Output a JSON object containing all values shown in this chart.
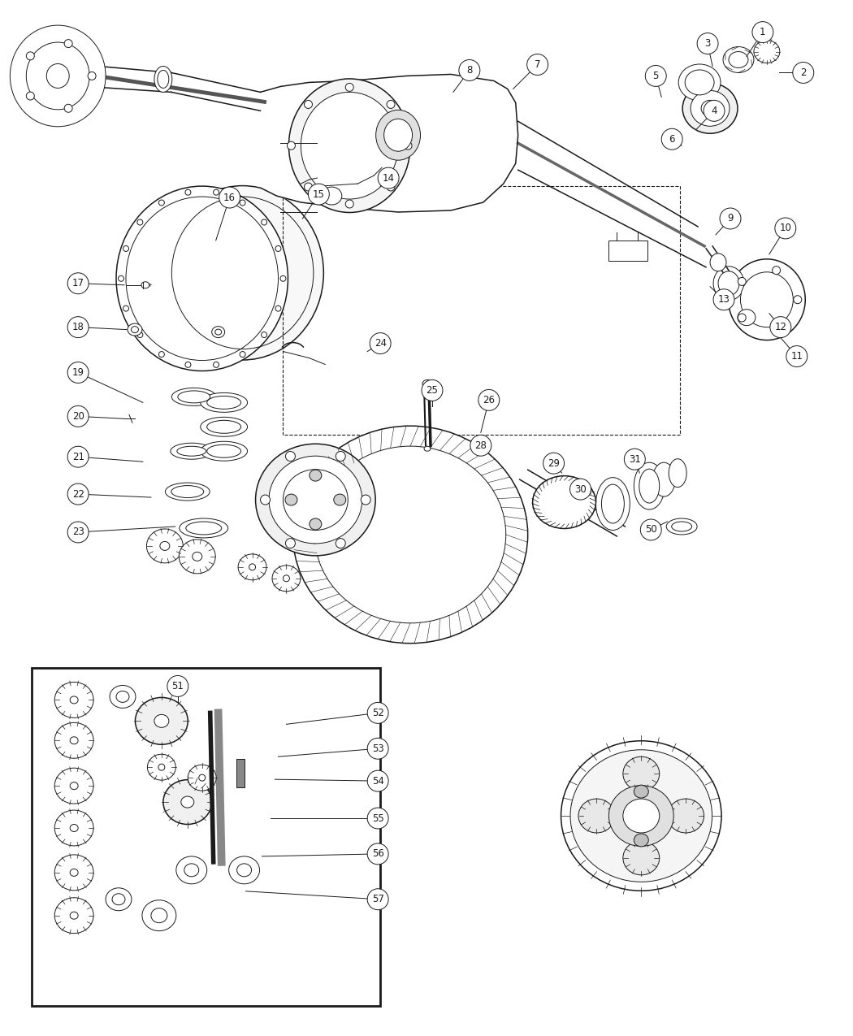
{
  "background_color": "#ffffff",
  "line_color": "#1a1a1a",
  "fig_width": 10.5,
  "fig_height": 12.75,
  "dpi": 100,
  "lw_main": 1.1,
  "lw_thin": 0.7,
  "lw_thick": 2.0,
  "label_r": 13,
  "label_fontsize": 8.5,
  "labels": [
    [
      "1",
      940,
      38,
      920,
      68
    ],
    [
      "2",
      990,
      88,
      960,
      88
    ],
    [
      "3",
      872,
      52,
      878,
      80
    ],
    [
      "4",
      880,
      135,
      858,
      158
    ],
    [
      "5",
      808,
      92,
      815,
      118
    ],
    [
      "6",
      828,
      170,
      840,
      178
    ],
    [
      "7",
      662,
      78,
      632,
      108
    ],
    [
      "8",
      578,
      85,
      558,
      112
    ],
    [
      "9",
      900,
      268,
      882,
      288
    ],
    [
      "10",
      968,
      280,
      948,
      312
    ],
    [
      "11",
      982,
      438,
      962,
      415
    ],
    [
      "12",
      962,
      402,
      948,
      385
    ],
    [
      "13",
      892,
      368,
      875,
      352
    ],
    [
      "14",
      478,
      218,
      468,
      228
    ],
    [
      "15",
      392,
      238,
      372,
      268
    ],
    [
      "16",
      282,
      242,
      265,
      295
    ],
    [
      "17",
      95,
      348,
      152,
      350
    ],
    [
      "18",
      95,
      402,
      155,
      405
    ],
    [
      "19",
      95,
      458,
      175,
      495
    ],
    [
      "20",
      95,
      512,
      152,
      515
    ],
    [
      "21",
      95,
      562,
      175,
      568
    ],
    [
      "22",
      95,
      608,
      185,
      612
    ],
    [
      "23",
      95,
      655,
      215,
      648
    ],
    [
      "24",
      468,
      422,
      452,
      432
    ],
    [
      "25",
      532,
      480,
      532,
      500
    ],
    [
      "26",
      602,
      492,
      592,
      532
    ],
    [
      "28",
      592,
      548,
      592,
      558
    ],
    [
      "29",
      682,
      570,
      692,
      582
    ],
    [
      "30",
      715,
      602,
      728,
      608
    ],
    [
      "31",
      782,
      565,
      788,
      582
    ],
    [
      "50",
      802,
      652,
      822,
      642
    ],
    [
      "51",
      218,
      845,
      218,
      865
    ],
    [
      "52",
      465,
      878,
      352,
      892
    ],
    [
      "53",
      465,
      922,
      342,
      932
    ],
    [
      "54",
      465,
      962,
      338,
      960
    ],
    [
      "55",
      465,
      1008,
      332,
      1008
    ],
    [
      "56",
      465,
      1052,
      322,
      1055
    ],
    [
      "57",
      465,
      1108,
      302,
      1098
    ]
  ]
}
